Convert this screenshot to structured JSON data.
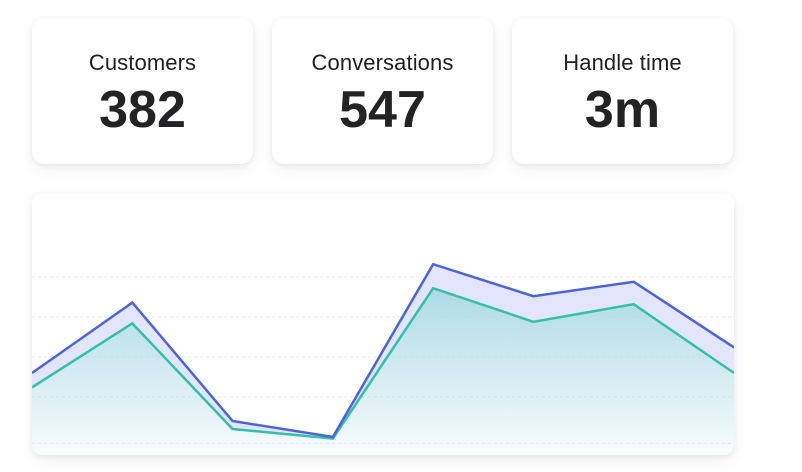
{
  "metrics": [
    {
      "label": "Customers",
      "value": "382"
    },
    {
      "label": "Conversations",
      "value": "547"
    },
    {
      "label": "Handle time",
      "value": "3m"
    }
  ],
  "colors": {
    "series_primary": "#4d63dc",
    "series_primary_fill": "#dfe2fb",
    "series_secondary": "#34bfa8",
    "series_secondary_fill": "#a9d9e4",
    "grid": "#e7e8ee"
  },
  "chart_data": {
    "type": "area",
    "grid": true,
    "ylim": [
      0,
      100
    ],
    "x": [
      0,
      1,
      2,
      3,
      4,
      5,
      6,
      7
    ],
    "series": [
      {
        "values": [
          40,
          84,
          10,
          0,
          108,
          88,
          97,
          56
        ]
      },
      {
        "values": [
          31,
          71,
          5,
          -1,
          93,
          72,
          83,
          40
        ]
      }
    ]
  }
}
